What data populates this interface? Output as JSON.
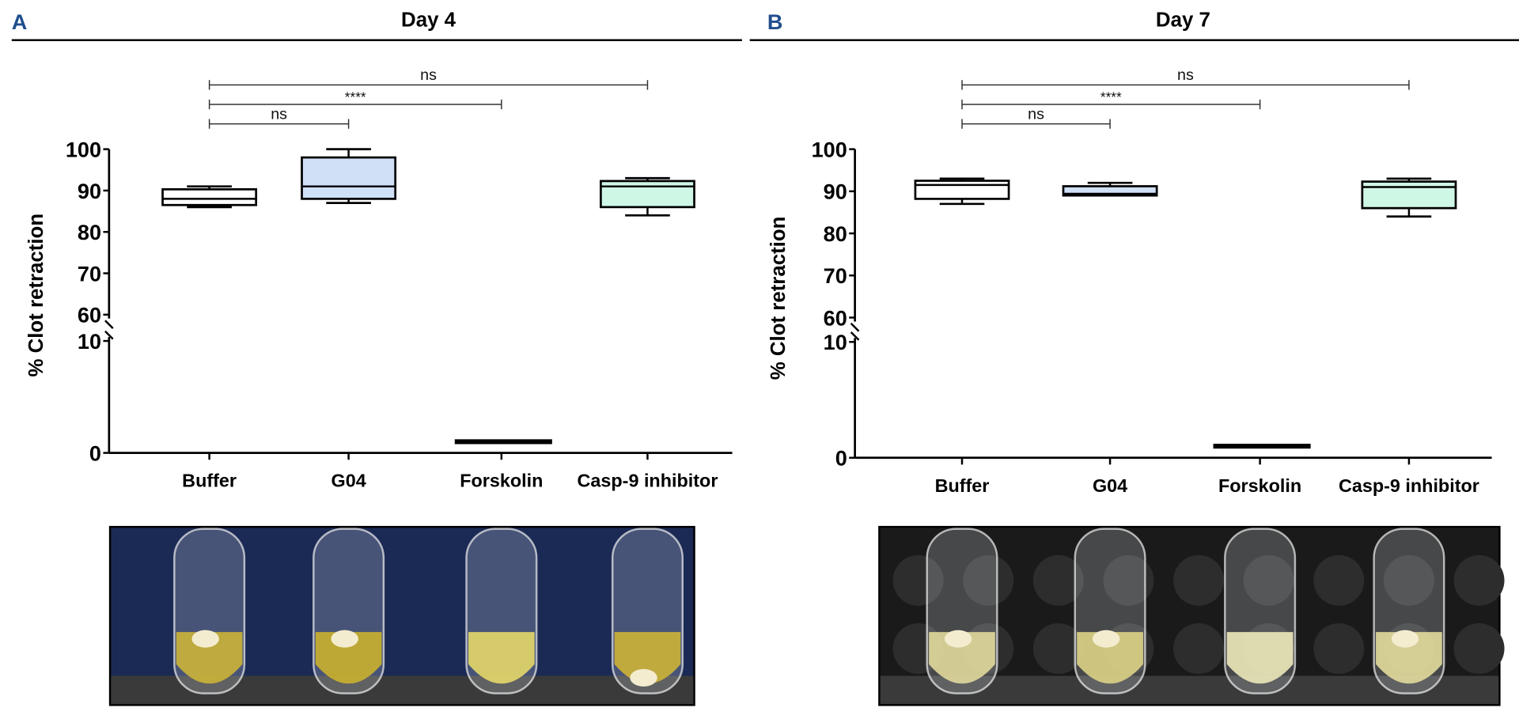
{
  "chart_data": [
    {
      "type": "box",
      "panel_label": "A",
      "title": "Day 4",
      "ylabel": "% Clot retraction",
      "categories": [
        "Buffer",
        "G04",
        "Forskolin",
        "Casp-9 inhibitor"
      ],
      "y_axis": {
        "broken": true,
        "segments": [
          [
            0,
            10
          ],
          [
            60,
            100
          ]
        ],
        "ticks": [
          "0",
          "10",
          "60",
          "70",
          "80",
          "90",
          "100"
        ]
      },
      "boxes": [
        {
          "category": "Buffer",
          "min": 86,
          "q1": 86.5,
          "median": 88,
          "q3": 90.3,
          "max": 91,
          "fill": "#ffffff"
        },
        {
          "category": "G04",
          "min": 87,
          "q1": 88,
          "median": 91,
          "q3": 98,
          "max": 100,
          "fill": "#cfe0f7"
        },
        {
          "category": "Forskolin",
          "min": 1,
          "q1": 1,
          "median": 1,
          "q3": 1,
          "max": 1,
          "fill": "#000000"
        },
        {
          "category": "Casp-9 inhibitor",
          "min": 84,
          "q1": 86,
          "median": 91,
          "q3": 92.3,
          "max": 93,
          "fill": "#cff7e6"
        }
      ],
      "comparisons": [
        {
          "from": "Buffer",
          "to": "Casp-9 inhibitor",
          "label": "ns"
        },
        {
          "from": "Buffer",
          "to": "Forskolin",
          "label": "****"
        },
        {
          "from": "Buffer",
          "to": "G04",
          "label": "ns"
        }
      ]
    },
    {
      "type": "box",
      "panel_label": "B",
      "title": "Day 7",
      "ylabel": "% Clot retraction",
      "categories": [
        "Buffer",
        "G04",
        "Forskolin",
        "Casp-9 inhibitor"
      ],
      "y_axis": {
        "broken": true,
        "segments": [
          [
            0,
            10
          ],
          [
            60,
            100
          ]
        ],
        "ticks": [
          "0",
          "10",
          "60",
          "70",
          "80",
          "90",
          "100"
        ]
      },
      "boxes": [
        {
          "category": "Buffer",
          "min": 87,
          "q1": 88.2,
          "median": 91.5,
          "q3": 92.5,
          "max": 93,
          "fill": "#ffffff"
        },
        {
          "category": "G04",
          "min": 89,
          "q1": 89,
          "median": 89.4,
          "q3": 91.2,
          "max": 92,
          "fill": "#cfe0f7"
        },
        {
          "category": "Forskolin",
          "min": 1,
          "q1": 1,
          "median": 1,
          "q3": 1,
          "max": 1,
          "fill": "#000000"
        },
        {
          "category": "Casp-9 inhibitor",
          "min": 84,
          "q1": 86,
          "median": 91,
          "q3": 92.3,
          "max": 93,
          "fill": "#cff7e6"
        }
      ],
      "comparisons": [
        {
          "from": "Buffer",
          "to": "Casp-9 inhibitor",
          "label": "ns"
        },
        {
          "from": "Buffer",
          "to": "Forskolin",
          "label": "****"
        },
        {
          "from": "Buffer",
          "to": "G04",
          "label": "ns"
        }
      ]
    }
  ],
  "colors": {
    "panel_label": "#1f4e8c",
    "axis": "#000000"
  },
  "photos": [
    {
      "panel": "A",
      "background": "#1b2a55",
      "liquid": [
        "#c9b23a",
        "#c8b030",
        "#e2d66a",
        "#cbb23a"
      ],
      "clot_visible": [
        true,
        true,
        false,
        true
      ]
    },
    {
      "panel": "B",
      "background": "#1a1a1a",
      "liquid": [
        "#ddd69a",
        "#d9cf86",
        "#e9e6b8",
        "#e0d89a"
      ],
      "clot_visible": [
        true,
        true,
        false,
        true
      ]
    }
  ]
}
